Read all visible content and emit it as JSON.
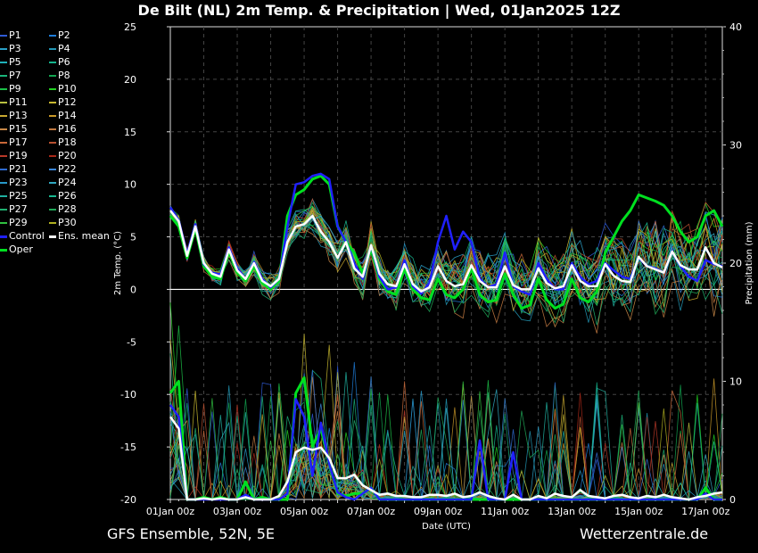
{
  "title": "De Bilt  (NL)  2m Temp. & Precipitation | Wed, 01Jan2025 12Z",
  "footer": {
    "left": "GFS Ensemble, 52N, 5E",
    "right": "Wetterzentrale.de"
  },
  "legend": [
    {
      "label": "P1",
      "color": "#2f5bd6"
    },
    {
      "label": "P2",
      "color": "#1e7cd8"
    },
    {
      "label": "P3",
      "color": "#2aa0c8"
    },
    {
      "label": "P4",
      "color": "#2296b4"
    },
    {
      "label": "P5",
      "color": "#1fb0b8"
    },
    {
      "label": "P6",
      "color": "#14b48c"
    },
    {
      "label": "P7",
      "color": "#1ab37a"
    },
    {
      "label": "P8",
      "color": "#12a450"
    },
    {
      "label": "P9",
      "color": "#1cc048"
    },
    {
      "label": "P10",
      "color": "#22d022"
    },
    {
      "label": "P11",
      "color": "#b8c040"
    },
    {
      "label": "P12",
      "color": "#c8b830"
    },
    {
      "label": "P13",
      "color": "#c8a830"
    },
    {
      "label": "P14",
      "color": "#c89828"
    },
    {
      "label": "P15",
      "color": "#c88848"
    },
    {
      "label": "P16",
      "color": "#c07840"
    },
    {
      "label": "P17",
      "color": "#c86838"
    },
    {
      "label": "P18",
      "color": "#b85030"
    },
    {
      "label": "P19",
      "color": "#b83828"
    },
    {
      "label": "P20",
      "color": "#a82818"
    },
    {
      "label": "P21",
      "color": "#2f6bd0"
    },
    {
      "label": "P22",
      "color": "#3a86d8"
    },
    {
      "label": "P23",
      "color": "#2898c8"
    },
    {
      "label": "P24",
      "color": "#30a8c0"
    },
    {
      "label": "P25",
      "color": "#20b0a0"
    },
    {
      "label": "P26",
      "color": "#18b890"
    },
    {
      "label": "P27",
      "color": "#20b070"
    },
    {
      "label": "P28",
      "color": "#20a858"
    },
    {
      "label": "P29",
      "color": "#30c040"
    },
    {
      "label": "P30",
      "color": "#b0b020"
    },
    {
      "label": "Control",
      "color": "#2020ff"
    },
    {
      "label": "Ens. mean",
      "color": "#ffffff"
    },
    {
      "label": "Oper",
      "color": "#00e020"
    }
  ],
  "chart_data": {
    "type": "line",
    "title": "De Bilt  (NL)  2m Temp. & Precipitation | Wed, 01Jan2025 12Z",
    "xlabel": "Date (UTC)",
    "ylabel": "2m Temp. (°C)",
    "ylabel_right": "Precipitation (mm)",
    "ylim": [
      -20,
      25
    ],
    "ylim_right": [
      0,
      40
    ],
    "xlim_steps": [
      0,
      66
    ],
    "x_tick_labels": [
      "01Jan 00z",
      "03Jan 00z",
      "05Jan 00z",
      "07Jan 00z",
      "09Jan 00z",
      "11Jan 00z",
      "13Jan 00z",
      "15Jan 00z",
      "17Jan 00z"
    ],
    "y_ticks": [
      25,
      20,
      15,
      10,
      5,
      0,
      -5,
      -10,
      -15,
      -20
    ],
    "y_ticks_right": [
      40,
      30,
      20,
      10,
      0
    ],
    "grid": true,
    "legend_placement": "left",
    "colors": {
      "control": "#2020ff",
      "mean": "#ffffff",
      "oper": "#00e020"
    },
    "series": [
      {
        "name": "Ens. mean",
        "kind": "temp",
        "values": [
          7.5,
          6.5,
          3.2,
          6,
          2.5,
          1.5,
          1.2,
          3.8,
          1.8,
          1,
          2.5,
          0.8,
          0.3,
          1,
          4.5,
          6,
          6.2,
          7,
          5.5,
          4.5,
          3,
          4.5,
          2,
          1.2,
          4.2,
          1.5,
          0.5,
          0.3,
          2.4,
          0.5,
          -0.2,
          0.2,
          2.2,
          0.8,
          0.3,
          0.5,
          2.3,
          0.8,
          0.2,
          0.2,
          2.2,
          0.4,
          0,
          0,
          2,
          0.6,
          0.1,
          0.3,
          2.3,
          0.8,
          0.3,
          0.3,
          2.4,
          1.3,
          0.8,
          0.7,
          3.1,
          2.2,
          1.9,
          1.6,
          3.6,
          2.3,
          1.9,
          1.9,
          4,
          2.5,
          2.1
        ]
      },
      {
        "name": "Control",
        "kind": "temp",
        "values": [
          7.8,
          6.6,
          3.4,
          6.2,
          2.4,
          1.6,
          1.4,
          4,
          2,
          1,
          2.6,
          1,
          0.2,
          1,
          6,
          10,
          10.2,
          10.8,
          11,
          10.5,
          6,
          4.5,
          2.5,
          1,
          4.2,
          1.2,
          0,
          0.2,
          2.8,
          0.3,
          -0.4,
          0.6,
          4.5,
          7,
          3.8,
          5.5,
          4.5,
          1,
          0.2,
          0.5,
          3.5,
          0.3,
          -0.2,
          -0.5,
          2.5,
          1,
          0,
          0,
          2.5,
          1.2,
          0.5,
          0.8,
          2.5,
          1.8,
          1.2,
          1,
          3,
          2.2,
          2,
          1.6,
          3.6,
          2.2,
          1.2,
          0.8,
          2.8,
          2.4,
          2.2
        ]
      },
      {
        "name": "Oper",
        "kind": "temp",
        "values": [
          7,
          6,
          3,
          5.8,
          2.2,
          1.2,
          1,
          3.6,
          1.6,
          0.8,
          2.2,
          0.6,
          0,
          0.8,
          7,
          9,
          9.5,
          10.5,
          10.8,
          10,
          6,
          4.5,
          3.5,
          1.5,
          3.8,
          1,
          -0.2,
          -0.5,
          2,
          0,
          -0.8,
          -1,
          1,
          -0.5,
          -0.8,
          0,
          2,
          -0.5,
          -1.2,
          -1,
          1.5,
          -0.5,
          -1.8,
          -1.5,
          1,
          -1,
          -1.8,
          -1.4,
          1,
          -0.8,
          -1.2,
          -0.2,
          3.5,
          5,
          6.5,
          7.5,
          9,
          8.7,
          8.4,
          8,
          7,
          5.5,
          4.5,
          5,
          7,
          7.5,
          6
        ]
      },
      {
        "name": "Ens. mean",
        "kind": "precip",
        "values": [
          7,
          6,
          0,
          0,
          0.1,
          0,
          0.1,
          0,
          0,
          0.2,
          0,
          0,
          0,
          0.3,
          1.5,
          4,
          4.4,
          4.2,
          4.4,
          3.5,
          1.8,
          1.8,
          2.1,
          1.2,
          0.8,
          0.4,
          0.5,
          0.3,
          0.3,
          0.2,
          0.2,
          0.4,
          0.4,
          0.3,
          0.5,
          0.2,
          0.3,
          0.6,
          0.3,
          0.1,
          0,
          0.4,
          0,
          0,
          0.3,
          0.1,
          0.5,
          0.3,
          0.2,
          0.8,
          0.3,
          0.2,
          0.1,
          0.3,
          0.4,
          0.2,
          0.1,
          0.3,
          0.2,
          0.4,
          0.2,
          0.1,
          0,
          0.2,
          0.3,
          0.5,
          0.6
        ]
      },
      {
        "name": "Control",
        "kind": "precip",
        "values": [
          8,
          7,
          0,
          0,
          0,
          0,
          0,
          0,
          0,
          0.4,
          0,
          0,
          0,
          0,
          0.5,
          8.5,
          7,
          2,
          6.5,
          3,
          0.6,
          0.2,
          0,
          0.5,
          1,
          0,
          0,
          0,
          0,
          0,
          0,
          0,
          0,
          0,
          0,
          0,
          0,
          5,
          0,
          0,
          0,
          4,
          0,
          0,
          0,
          0,
          0,
          0,
          0,
          0,
          0,
          0,
          0,
          0,
          0,
          0,
          0,
          0,
          0,
          0,
          0,
          0,
          0,
          0,
          0.5,
          0,
          0
        ]
      },
      {
        "name": "Oper",
        "kind": "precip",
        "values": [
          9,
          10,
          0,
          0,
          0.2,
          0,
          0.2,
          0,
          0,
          1.5,
          0,
          0.2,
          0,
          0,
          0,
          9,
          10.3,
          4.5,
          6,
          3,
          0.5,
          0.3,
          0.5,
          0.5,
          1,
          0,
          0,
          0,
          0,
          0,
          0,
          0,
          0,
          0,
          0,
          0,
          0,
          0,
          0,
          0,
          0,
          0,
          0,
          0,
          0,
          0,
          0,
          0,
          0,
          0,
          0,
          0,
          0,
          0,
          0,
          0,
          0,
          0,
          0,
          0,
          0,
          0,
          0,
          0,
          1,
          0,
          0
        ]
      }
    ],
    "members_note": "P1–P30 thin ensemble member lines spread around the mean"
  }
}
